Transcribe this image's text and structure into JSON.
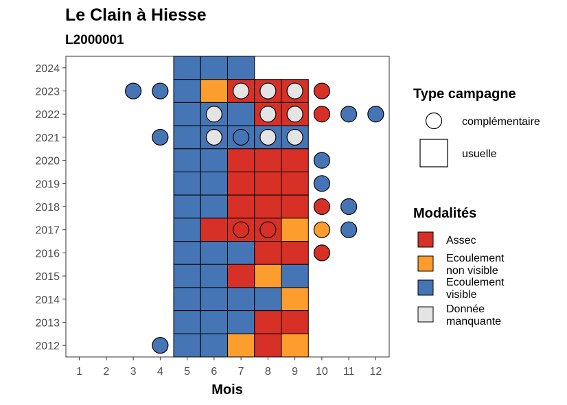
{
  "chart_data": {
    "type": "heatmap",
    "title": "Le Clain à Hiesse",
    "subtitle": "L2000001",
    "xlabel": "Mois",
    "ylabel": "",
    "x_ticks": [
      1,
      2,
      3,
      4,
      5,
      6,
      7,
      8,
      9,
      10,
      11,
      12
    ],
    "y_ticks": [
      2012,
      2013,
      2014,
      2015,
      2016,
      2017,
      2018,
      2019,
      2020,
      2021,
      2022,
      2023,
      2024
    ],
    "xlim": [
      0.5,
      12.5
    ],
    "ylim": [
      2011.5,
      2024.5
    ],
    "grid": false,
    "legend_position": "right",
    "colors": {
      "assec": "#d73027",
      "ecoulement_non_visible": "#fd9d2d",
      "ecoulement_visible": "#4575b4",
      "donnee_manquante": "#e4e4e4"
    },
    "legend_shape": {
      "title": "Type campagne",
      "items": [
        {
          "key": "complementaire",
          "label": "complémentaire",
          "shape": "circle"
        },
        {
          "key": "usuelle",
          "label": "usuelle",
          "shape": "square"
        }
      ]
    },
    "legend_fill": {
      "title": "Modalités",
      "items": [
        {
          "key": "assec",
          "label_lines": [
            "Assec"
          ]
        },
        {
          "key": "ecoulement_non_visible",
          "label_lines": [
            "Ecoulement",
            "non visible"
          ]
        },
        {
          "key": "ecoulement_visible",
          "label_lines": [
            "Ecoulement",
            "visible"
          ]
        },
        {
          "key": "donnee_manquante",
          "label_lines": [
            "Donnée",
            "manquante"
          ]
        }
      ]
    },
    "usuelle": [
      {
        "year": 2024,
        "month": 5,
        "modalite": "ecoulement_visible"
      },
      {
        "year": 2024,
        "month": 6,
        "modalite": "ecoulement_visible"
      },
      {
        "year": 2024,
        "month": 7,
        "modalite": "ecoulement_visible"
      },
      {
        "year": 2023,
        "month": 5,
        "modalite": "ecoulement_visible"
      },
      {
        "year": 2023,
        "month": 6,
        "modalite": "ecoulement_non_visible"
      },
      {
        "year": 2023,
        "month": 7,
        "modalite": "assec"
      },
      {
        "year": 2023,
        "month": 8,
        "modalite": "assec"
      },
      {
        "year": 2023,
        "month": 9,
        "modalite": "assec"
      },
      {
        "year": 2022,
        "month": 5,
        "modalite": "ecoulement_visible"
      },
      {
        "year": 2022,
        "month": 6,
        "modalite": "ecoulement_visible"
      },
      {
        "year": 2022,
        "month": 7,
        "modalite": "ecoulement_visible"
      },
      {
        "year": 2022,
        "month": 8,
        "modalite": "assec"
      },
      {
        "year": 2022,
        "month": 9,
        "modalite": "assec"
      },
      {
        "year": 2021,
        "month": 5,
        "modalite": "ecoulement_visible"
      },
      {
        "year": 2021,
        "month": 6,
        "modalite": "ecoulement_visible"
      },
      {
        "year": 2021,
        "month": 7,
        "modalite": "ecoulement_visible"
      },
      {
        "year": 2021,
        "month": 8,
        "modalite": "ecoulement_visible"
      },
      {
        "year": 2021,
        "month": 9,
        "modalite": "ecoulement_visible"
      },
      {
        "year": 2020,
        "month": 5,
        "modalite": "ecoulement_visible"
      },
      {
        "year": 2020,
        "month": 6,
        "modalite": "ecoulement_visible"
      },
      {
        "year": 2020,
        "month": 7,
        "modalite": "assec"
      },
      {
        "year": 2020,
        "month": 8,
        "modalite": "assec"
      },
      {
        "year": 2020,
        "month": 9,
        "modalite": "assec"
      },
      {
        "year": 2019,
        "month": 5,
        "modalite": "ecoulement_visible"
      },
      {
        "year": 2019,
        "month": 6,
        "modalite": "ecoulement_visible"
      },
      {
        "year": 2019,
        "month": 7,
        "modalite": "assec"
      },
      {
        "year": 2019,
        "month": 8,
        "modalite": "assec"
      },
      {
        "year": 2019,
        "month": 9,
        "modalite": "assec"
      },
      {
        "year": 2018,
        "month": 5,
        "modalite": "ecoulement_visible"
      },
      {
        "year": 2018,
        "month": 6,
        "modalite": "ecoulement_visible"
      },
      {
        "year": 2018,
        "month": 7,
        "modalite": "assec"
      },
      {
        "year": 2018,
        "month": 8,
        "modalite": "assec"
      },
      {
        "year": 2018,
        "month": 9,
        "modalite": "assec"
      },
      {
        "year": 2017,
        "month": 5,
        "modalite": "ecoulement_visible"
      },
      {
        "year": 2017,
        "month": 6,
        "modalite": "assec"
      },
      {
        "year": 2017,
        "month": 7,
        "modalite": "assec"
      },
      {
        "year": 2017,
        "month": 8,
        "modalite": "assec"
      },
      {
        "year": 2017,
        "month": 9,
        "modalite": "ecoulement_non_visible"
      },
      {
        "year": 2016,
        "month": 5,
        "modalite": "ecoulement_visible"
      },
      {
        "year": 2016,
        "month": 6,
        "modalite": "ecoulement_visible"
      },
      {
        "year": 2016,
        "month": 7,
        "modalite": "ecoulement_visible"
      },
      {
        "year": 2016,
        "month": 8,
        "modalite": "assec"
      },
      {
        "year": 2016,
        "month": 9,
        "modalite": "assec"
      },
      {
        "year": 2015,
        "month": 5,
        "modalite": "ecoulement_visible"
      },
      {
        "year": 2015,
        "month": 6,
        "modalite": "ecoulement_visible"
      },
      {
        "year": 2015,
        "month": 7,
        "modalite": "assec"
      },
      {
        "year": 2015,
        "month": 8,
        "modalite": "ecoulement_non_visible"
      },
      {
        "year": 2015,
        "month": 9,
        "modalite": "ecoulement_visible"
      },
      {
        "year": 2014,
        "month": 5,
        "modalite": "ecoulement_visible"
      },
      {
        "year": 2014,
        "month": 6,
        "modalite": "ecoulement_visible"
      },
      {
        "year": 2014,
        "month": 7,
        "modalite": "ecoulement_visible"
      },
      {
        "year": 2014,
        "month": 8,
        "modalite": "ecoulement_visible"
      },
      {
        "year": 2014,
        "month": 9,
        "modalite": "ecoulement_non_visible"
      },
      {
        "year": 2013,
        "month": 5,
        "modalite": "ecoulement_visible"
      },
      {
        "year": 2013,
        "month": 6,
        "modalite": "ecoulement_visible"
      },
      {
        "year": 2013,
        "month": 7,
        "modalite": "ecoulement_visible"
      },
      {
        "year": 2013,
        "month": 8,
        "modalite": "assec"
      },
      {
        "year": 2013,
        "month": 9,
        "modalite": "assec"
      },
      {
        "year": 2012,
        "month": 5,
        "modalite": "ecoulement_visible"
      },
      {
        "year": 2012,
        "month": 6,
        "modalite": "ecoulement_visible"
      },
      {
        "year": 2012,
        "month": 7,
        "modalite": "ecoulement_non_visible"
      },
      {
        "year": 2012,
        "month": 8,
        "modalite": "assec"
      },
      {
        "year": 2012,
        "month": 9,
        "modalite": "ecoulement_non_visible"
      }
    ],
    "complementaire": [
      {
        "year": 2023,
        "month": 3,
        "modalite": "ecoulement_visible"
      },
      {
        "year": 2023,
        "month": 4,
        "modalite": "ecoulement_visible"
      },
      {
        "year": 2023,
        "month": 7,
        "modalite": "donnee_manquante"
      },
      {
        "year": 2023,
        "month": 8,
        "modalite": "donnee_manquante"
      },
      {
        "year": 2023,
        "month": 9,
        "modalite": "donnee_manquante"
      },
      {
        "year": 2023,
        "month": 10,
        "modalite": "assec"
      },
      {
        "year": 2022,
        "month": 6,
        "modalite": "donnee_manquante"
      },
      {
        "year": 2022,
        "month": 8,
        "modalite": "donnee_manquante"
      },
      {
        "year": 2022,
        "month": 9,
        "modalite": "donnee_manquante"
      },
      {
        "year": 2022,
        "month": 10,
        "modalite": "assec"
      },
      {
        "year": 2022,
        "month": 11,
        "modalite": "ecoulement_visible"
      },
      {
        "year": 2022,
        "month": 12,
        "modalite": "ecoulement_visible"
      },
      {
        "year": 2021,
        "month": 4,
        "modalite": "ecoulement_visible"
      },
      {
        "year": 2021,
        "month": 6,
        "modalite": "donnee_manquante"
      },
      {
        "year": 2021,
        "month": 7,
        "modalite": "ecoulement_visible"
      },
      {
        "year": 2021,
        "month": 8,
        "modalite": "donnee_manquante"
      },
      {
        "year": 2021,
        "month": 9,
        "modalite": "donnee_manquante"
      },
      {
        "year": 2020,
        "month": 10,
        "modalite": "ecoulement_visible"
      },
      {
        "year": 2019,
        "month": 10,
        "modalite": "ecoulement_visible"
      },
      {
        "year": 2018,
        "month": 10,
        "modalite": "assec"
      },
      {
        "year": 2018,
        "month": 11,
        "modalite": "ecoulement_visible"
      },
      {
        "year": 2017,
        "month": 7,
        "modalite": "assec"
      },
      {
        "year": 2017,
        "month": 8,
        "modalite": "assec"
      },
      {
        "year": 2017,
        "month": 10,
        "modalite": "ecoulement_non_visible"
      },
      {
        "year": 2017,
        "month": 11,
        "modalite": "ecoulement_visible"
      },
      {
        "year": 2016,
        "month": 10,
        "modalite": "assec"
      },
      {
        "year": 2012,
        "month": 4,
        "modalite": "ecoulement_visible"
      }
    ]
  }
}
